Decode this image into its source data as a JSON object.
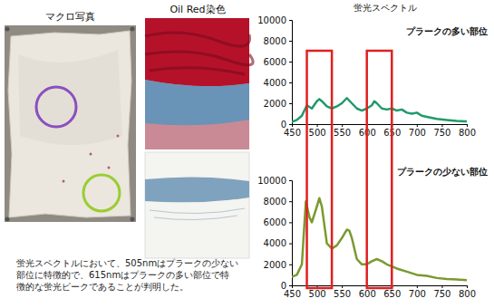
{
  "panels": {
    "macro_title": "マクロ写真",
    "stain_title": "Oil Red染色",
    "spectrum_title": "蛍光スペクトル"
  },
  "caption": [
    "蛍光スペクトルにおいて、505nmはプラークの少ない",
    "部位に特徴的で、615nmはプラークの多い部位で特",
    "徴的な蛍光ピークであることが判明した。"
  ],
  "highlight_bands": [
    [
      480,
      530
    ],
    [
      600,
      650
    ]
  ],
  "chart_data": [
    {
      "type": "line",
      "title": "プラークの多い部位",
      "color": "#1f9a6a",
      "x": [
        450,
        460,
        470,
        480,
        490,
        500,
        505,
        510,
        520,
        530,
        540,
        550,
        560,
        570,
        580,
        590,
        600,
        610,
        615,
        620,
        630,
        640,
        650,
        660,
        670,
        680,
        690,
        700,
        710,
        720,
        740,
        760,
        780,
        800
      ],
      "values": [
        200,
        400,
        800,
        1800,
        1500,
        2200,
        2400,
        2200,
        1700,
        1500,
        1700,
        2000,
        2500,
        2000,
        1500,
        1300,
        1500,
        1800,
        2200,
        2000,
        1500,
        1400,
        1500,
        1300,
        1400,
        1100,
        1000,
        1100,
        800,
        700,
        500,
        400,
        300,
        250
      ],
      "xlim": [
        450,
        800
      ],
      "ylim": [
        0,
        10000
      ],
      "xticks": [
        450,
        500,
        550,
        600,
        650,
        700,
        750,
        800
      ],
      "yticks": [
        0,
        2000,
        4000,
        6000,
        8000,
        10000
      ]
    },
    {
      "type": "line",
      "title": "プラークの少ない部位",
      "color": "#7a9a2e",
      "x": [
        450,
        460,
        470,
        478,
        485,
        490,
        500,
        505,
        510,
        520,
        530,
        540,
        550,
        560,
        565,
        570,
        580,
        590,
        600,
        610,
        620,
        630,
        640,
        650,
        660,
        680,
        700,
        720,
        740,
        760,
        780,
        800
      ],
      "values": [
        800,
        1000,
        2000,
        8000,
        6500,
        6000,
        7500,
        8300,
        7500,
        4000,
        3500,
        3800,
        4500,
        5300,
        5200,
        4500,
        2500,
        2000,
        2000,
        2300,
        2500,
        2300,
        2000,
        1800,
        1600,
        1300,
        1000,
        900,
        700,
        600,
        550,
        500
      ],
      "xlim": [
        450,
        800
      ],
      "ylim": [
        0,
        10000
      ],
      "xticks": [
        450,
        500,
        550,
        600,
        650,
        700,
        750,
        800
      ],
      "yticks": [
        0,
        2000,
        4000,
        6000,
        8000,
        10000
      ]
    }
  ]
}
